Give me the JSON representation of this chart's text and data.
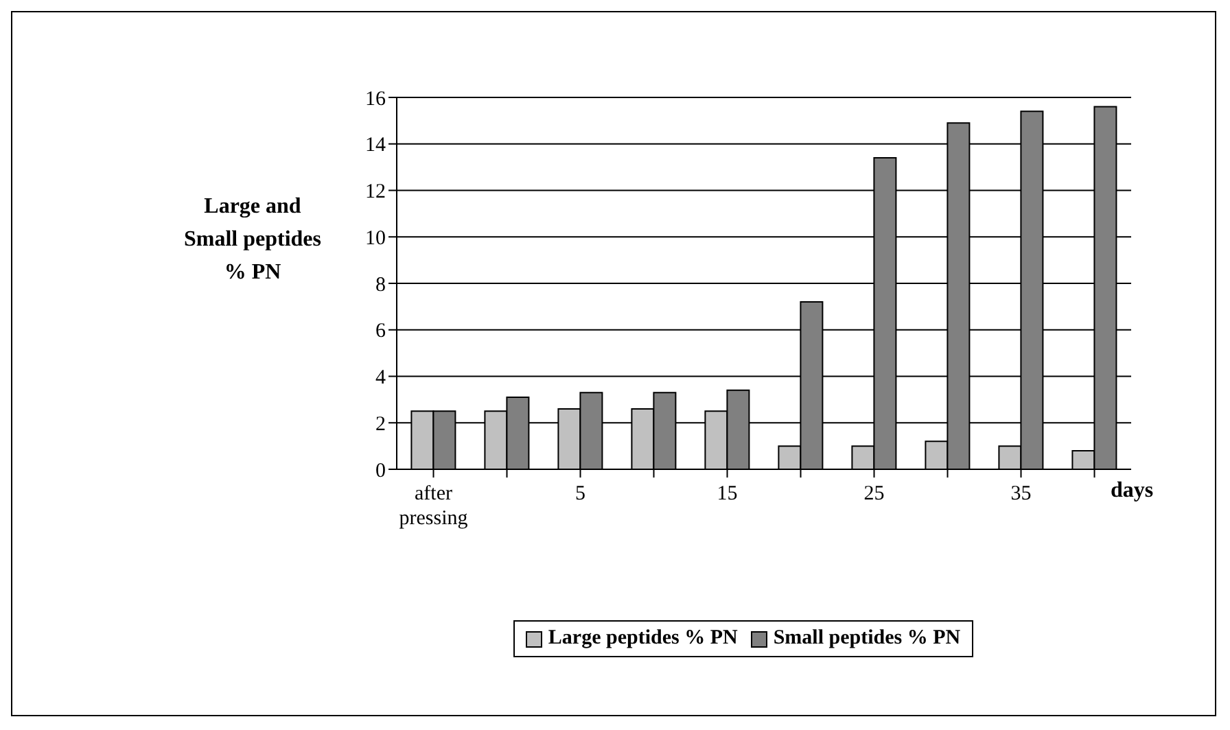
{
  "chart_data": {
    "type": "bar",
    "ylabel": "Large and Small peptides % PN",
    "xlabel": "days",
    "categories": [
      "after pressing",
      null,
      "5",
      null,
      "15",
      null,
      "25",
      null,
      "35",
      null
    ],
    "series": [
      {
        "name": "Large peptides % PN",
        "color": "#c0c0c0",
        "values": [
          2.5,
          2.5,
          2.6,
          2.6,
          2.5,
          1.0,
          1.0,
          1.2,
          1.0,
          0.8
        ]
      },
      {
        "name": "Small peptides % PN",
        "color": "#808080",
        "values": [
          2.5,
          3.1,
          3.3,
          3.3,
          3.4,
          7.2,
          13.4,
          14.9,
          15.4,
          15.6
        ]
      }
    ],
    "ylim": [
      0,
      16
    ],
    "yticks": [
      0,
      2,
      4,
      6,
      8,
      10,
      12,
      14,
      16
    ],
    "grid": "y",
    "legend": "bottom"
  }
}
